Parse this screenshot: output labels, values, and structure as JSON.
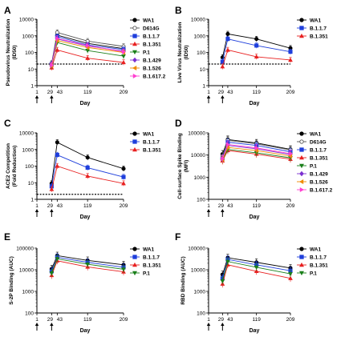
{
  "series_styles": {
    "WA1": {
      "color": "#000000",
      "marker": "circle",
      "filled": true
    },
    "D614G": {
      "color": "#555555",
      "marker": "circle",
      "filled": false
    },
    "B.1.1.7": {
      "color": "#1f3fdc",
      "marker": "square",
      "filled": true
    },
    "B.1.351": {
      "color": "#e82020",
      "marker": "triangle",
      "filled": true
    },
    "P.1": {
      "color": "#1a7f1a",
      "marker": "triangle-down",
      "filled": true
    },
    "B.1.429": {
      "color": "#7b2fd0",
      "marker": "diamond",
      "filled": true
    },
    "B.1.526": {
      "color": "#f08a00",
      "marker": "triangle-left",
      "filled": true
    },
    "B.1.617.2": {
      "color": "#ff3fd0",
      "marker": "triangle-right",
      "filled": true
    }
  },
  "chart_data": [
    {
      "panel_label": "A",
      "type": "line",
      "ylabel_lines": [
        "Pseudovirus Neutralization",
        "(ID50)"
      ],
      "xlabel": "Day",
      "x_ticks": [
        1,
        29,
        43,
        119,
        209
      ],
      "y_scale": "log",
      "ylim": [
        1,
        10000
      ],
      "y_ticks": [
        "1",
        "10",
        "100",
        "1000",
        "10000"
      ],
      "threshold": 20,
      "dose_days": [
        1,
        29
      ],
      "x": [
        29,
        43,
        119,
        209
      ],
      "series": [
        {
          "name": "WA1",
          "values": [
            20,
            1100,
            350,
            170
          ]
        },
        {
          "name": "D614G",
          "values": [
            22,
            1600,
            480,
            230
          ]
        },
        {
          "name": "B.1.1.7",
          "values": [
            19,
            900,
            280,
            150
          ]
        },
        {
          "name": "B.1.351",
          "values": [
            12,
            140,
            45,
            25
          ]
        },
        {
          "name": "P.1",
          "values": [
            15,
            400,
            130,
            60
          ]
        },
        {
          "name": "B.1.429",
          "values": [
            18,
            650,
            240,
            120
          ]
        },
        {
          "name": "B.1.526",
          "values": [
            16,
            520,
            200,
            100
          ]
        },
        {
          "name": "B.1.617.2",
          "values": [
            17,
            700,
            260,
            110
          ]
        }
      ]
    },
    {
      "panel_label": "B",
      "type": "line",
      "ylabel_lines": [
        "Live Virus Neutralization",
        "(ID50)"
      ],
      "xlabel": "Day",
      "x_ticks": [
        1,
        29,
        43,
        119,
        209
      ],
      "y_scale": "log",
      "ylim": [
        1,
        10000
      ],
      "y_ticks": [
        "1",
        "10",
        "100",
        "1000",
        "10000"
      ],
      "threshold": 20,
      "dose_days": [
        1,
        29
      ],
      "x": [
        29,
        43,
        119,
        209
      ],
      "series": [
        {
          "name": "WA1",
          "values": [
            50,
            1300,
            650,
            180
          ]
        },
        {
          "name": "B.1.1.7",
          "values": [
            28,
            650,
            260,
            110
          ]
        },
        {
          "name": "B.1.351",
          "values": [
            14,
            140,
            55,
            35
          ]
        }
      ]
    },
    {
      "panel_label": "C",
      "type": "line",
      "ylabel_lines": [
        "ACE2 Competition",
        "(Fold Reduction)"
      ],
      "xlabel": "Day",
      "x_ticks": [
        1,
        29,
        43,
        119,
        209
      ],
      "y_scale": "log",
      "ylim": [
        1,
        10000
      ],
      "y_ticks": [
        "1",
        "10",
        "100",
        "1000",
        "10000"
      ],
      "threshold": 2,
      "dose_days": [
        1,
        29
      ],
      "x": [
        29,
        43,
        119,
        209
      ],
      "series": [
        {
          "name": "WA1",
          "values": [
            9,
            2700,
            330,
            70
          ]
        },
        {
          "name": "B.1.1.7",
          "values": [
            6,
            470,
            80,
            22
          ]
        },
        {
          "name": "B.1.351",
          "values": [
            4,
            100,
            25,
            9
          ]
        }
      ]
    },
    {
      "panel_label": "D",
      "type": "line",
      "ylabel_lines": [
        "Cell-surface Spike Binding",
        "(MFI)"
      ],
      "xlabel": "Day",
      "x_ticks": [
        1,
        29,
        43,
        119,
        209
      ],
      "y_scale": "log",
      "ylim": [
        100,
        100000
      ],
      "y_ticks": [
        "100",
        "1000",
        "10000",
        "100000"
      ],
      "dose_days": [
        1,
        29
      ],
      "x": [
        29,
        43,
        119,
        209
      ],
      "series": [
        {
          "name": "WA1",
          "values": [
            11000,
            50000,
            35000,
            18000
          ]
        },
        {
          "name": "D614G",
          "values": [
            9000,
            46000,
            32000,
            17000
          ]
        },
        {
          "name": "B.1.1.7",
          "values": [
            7000,
            38000,
            27000,
            14000
          ]
        },
        {
          "name": "B.1.351",
          "values": [
            5500,
            16000,
            11000,
            6500
          ]
        },
        {
          "name": "P.1",
          "values": [
            6000,
            18000,
            12500,
            7500
          ]
        },
        {
          "name": "B.1.429",
          "values": [
            6500,
            27000,
            19000,
            10500
          ]
        },
        {
          "name": "B.1.526",
          "values": [
            6200,
            22000,
            16000,
            9000
          ]
        },
        {
          "name": "B.1.617.2",
          "values": [
            6800,
            30000,
            21000,
            11500
          ]
        }
      ]
    },
    {
      "panel_label": "E",
      "type": "line",
      "ylabel_lines": [
        "S-2P Binding (AUC)"
      ],
      "xlabel": "Day",
      "x_ticks": [
        1,
        29,
        43,
        119,
        209
      ],
      "y_scale": "log",
      "ylim": [
        100,
        100000
      ],
      "y_ticks": [
        "100",
        "1000",
        "10000",
        "100000"
      ],
      "dose_days": [
        1,
        29
      ],
      "x": [
        29,
        43,
        119,
        209
      ],
      "series": [
        {
          "name": "WA1",
          "values": [
            11000,
            45000,
            27000,
            17000
          ]
        },
        {
          "name": "B.1.1.7",
          "values": [
            8500,
            38000,
            22000,
            13000
          ]
        },
        {
          "name": "B.1.351",
          "values": [
            5500,
            26000,
            13500,
            8000
          ]
        },
        {
          "name": "P.1",
          "values": [
            7000,
            32000,
            18000,
            10500
          ]
        }
      ]
    },
    {
      "panel_label": "F",
      "type": "line",
      "ylabel_lines": [
        "RBD Binding (AUC)"
      ],
      "xlabel": "Day",
      "x_ticks": [
        1,
        29,
        43,
        119,
        209
      ],
      "y_scale": "log",
      "ylim": [
        100,
        100000
      ],
      "y_ticks": [
        "100",
        "1000",
        "10000",
        "100000"
      ],
      "dose_days": [
        1,
        29
      ],
      "x": [
        29,
        43,
        119,
        209
      ],
      "series": [
        {
          "name": "WA1",
          "values": [
            6000,
            36000,
            22000,
            12000
          ]
        },
        {
          "name": "B.1.1.7",
          "values": [
            4000,
            30000,
            17000,
            9000
          ]
        },
        {
          "name": "B.1.351",
          "values": [
            2200,
            17000,
            8500,
            4000
          ]
        },
        {
          "name": "P.1",
          "values": [
            3000,
            24000,
            13000,
            6500
          ]
        }
      ]
    }
  ]
}
